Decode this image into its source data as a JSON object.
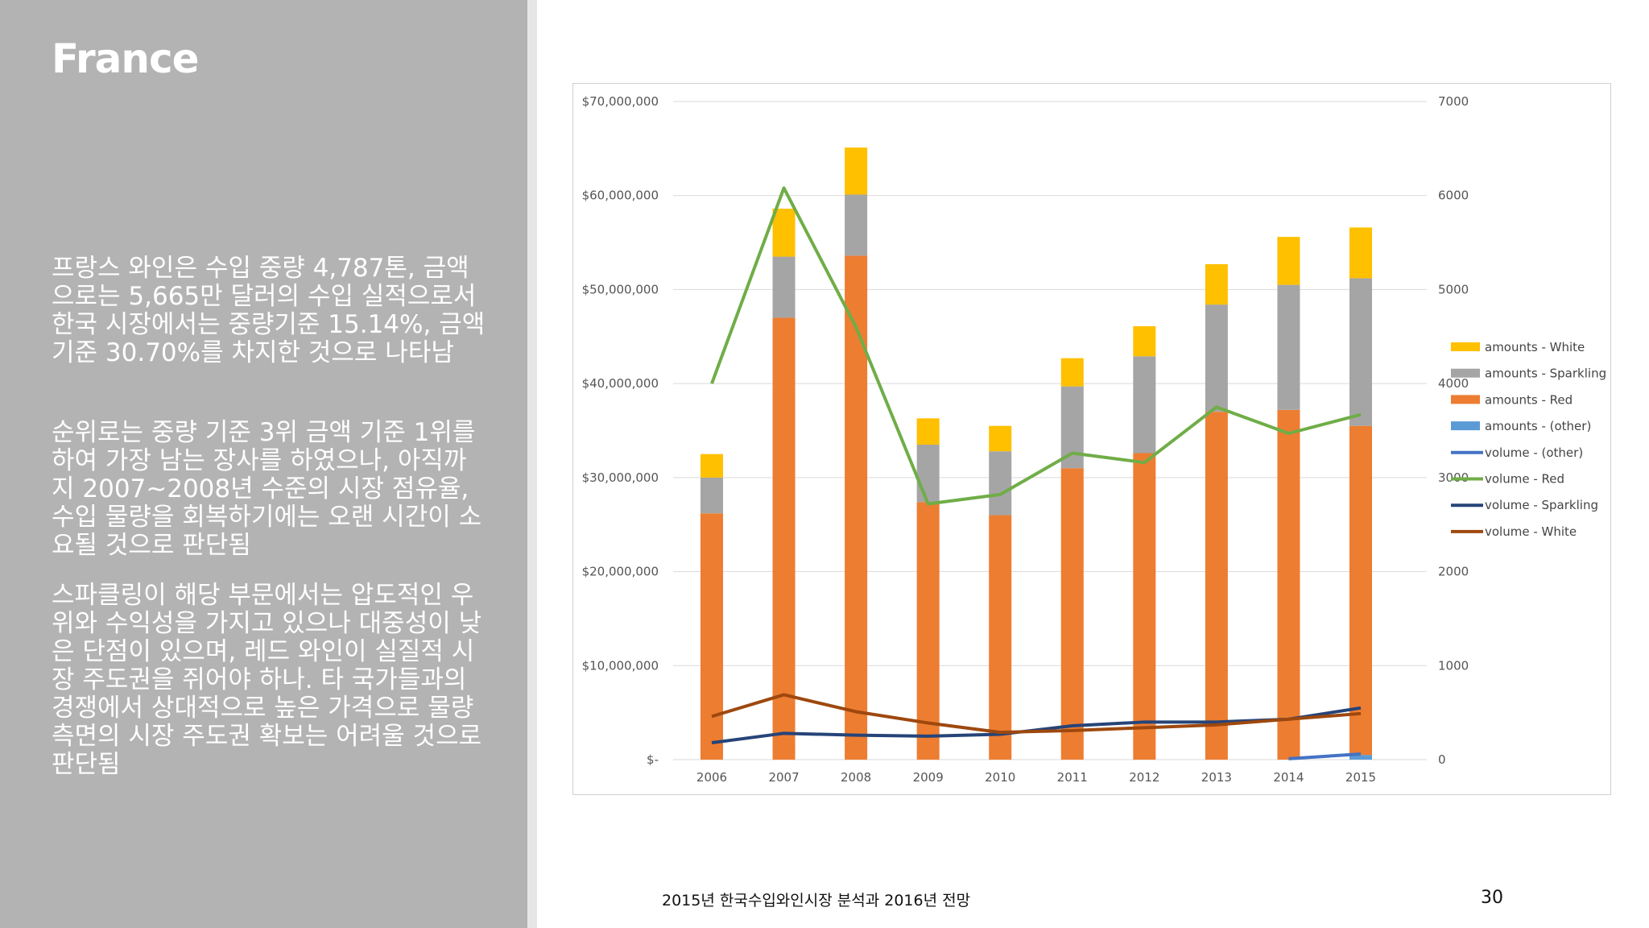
{
  "slide": {
    "title": "France",
    "paragraphs": [
      "프랑스 와인은 수입 중량 4,787톤, 금액으로는 5,665만 달러의 수입 실적으로서 한국 시장에서는 중량기준 15.14%, 금액 기준 30.70%를 차지한 것으로 나타남",
      "순위로는 중량 기준 3위 금액 기준 1위를 하여 가장 남는 장사를 하였으나, 아직까지 2007~2008년 수준의 시장 점유율, 수입 물량을 회복하기에는 오랜 시간이 소요될 것으로 판단됨",
      "스파클링이 해당 부문에서는 압도적인 우위와 수익성을 가지고 있으나 대중성이 낮은 단점이 있으며, 레드 와인이 실질적 시장 주도권을 쥐어야 하나. 타 국가들과의 경쟁에서 상대적으로 높은 가격으로 물량 측면의 시장 주도권 확보는 어려울 것으로 판단됨"
    ],
    "footer": "2015년 한국수입와인시장 분석과 2016년 전망",
    "page_number": "30"
  },
  "chart_data": {
    "type": "bar",
    "stacked": true,
    "categories": [
      "2006",
      "2007",
      "2008",
      "2009",
      "2010",
      "2011",
      "2012",
      "2013",
      "2014",
      "2015"
    ],
    "y_left": {
      "lim": [
        0,
        70000000
      ],
      "ticks": [
        0,
        10000000,
        20000000,
        30000000,
        40000000,
        50000000,
        60000000,
        70000000
      ],
      "tick_labels": [
        "$-",
        "$10,000,000",
        "$20,000,000",
        "$30,000,000",
        "$40,000,000",
        "$50,000,000",
        "$60,000,000",
        "$70,000,000"
      ]
    },
    "y_right": {
      "lim": [
        0,
        7000
      ],
      "ticks": [
        0,
        1000,
        2000,
        3000,
        4000,
        5000,
        6000,
        7000
      ],
      "tick_labels": [
        "0",
        "1000",
        "2000",
        "3000",
        "4000",
        "5000",
        "6000",
        "7000"
      ]
    },
    "grid": true,
    "legend_position": "right",
    "bar_series": [
      {
        "name": "amounts - (other)",
        "color": "#5b9bd5",
        "values": [
          0,
          0,
          0,
          0,
          0,
          0,
          0,
          0,
          0,
          500000
        ]
      },
      {
        "name": "amounts - Red",
        "color": "#ed7d31",
        "values": [
          26200000,
          47000000,
          53600000,
          27400000,
          26000000,
          31000000,
          32600000,
          37000000,
          37200000,
          35000000
        ]
      },
      {
        "name": "amounts - Sparkling",
        "color": "#a5a5a5",
        "values": [
          3800000,
          6500000,
          6500000,
          6100000,
          6800000,
          8700000,
          10300000,
          11400000,
          13300000,
          15700000
        ]
      },
      {
        "name": "amounts - White",
        "color": "#ffc000",
        "values": [
          2500000,
          5100000,
          5000000,
          2800000,
          2700000,
          3000000,
          3200000,
          4300000,
          5100000,
          5400000
        ]
      }
    ],
    "line_series": [
      {
        "name": "volume - (other)",
        "color": "#4472c4",
        "values": [
          null,
          null,
          null,
          null,
          null,
          null,
          null,
          null,
          10,
          60
        ]
      },
      {
        "name": "volume - Red",
        "color": "#70ad47",
        "values": [
          4000,
          6080,
          4600,
          2720,
          2820,
          3260,
          3160,
          3750,
          3470,
          3670
        ]
      },
      {
        "name": "volume - Sparkling",
        "color": "#264478",
        "values": [
          180,
          280,
          260,
          250,
          270,
          360,
          400,
          400,
          430,
          550
        ]
      },
      {
        "name": "volume - White",
        "color": "#9e480e",
        "values": [
          460,
          690,
          510,
          390,
          290,
          310,
          340,
          370,
          430,
          490
        ]
      }
    ],
    "legend_order": [
      "amounts - White",
      "amounts - Sparkling",
      "amounts - Red",
      "amounts - (other)",
      "volume - (other)",
      "volume - Red",
      "volume - Sparkling",
      "volume - White"
    ]
  }
}
